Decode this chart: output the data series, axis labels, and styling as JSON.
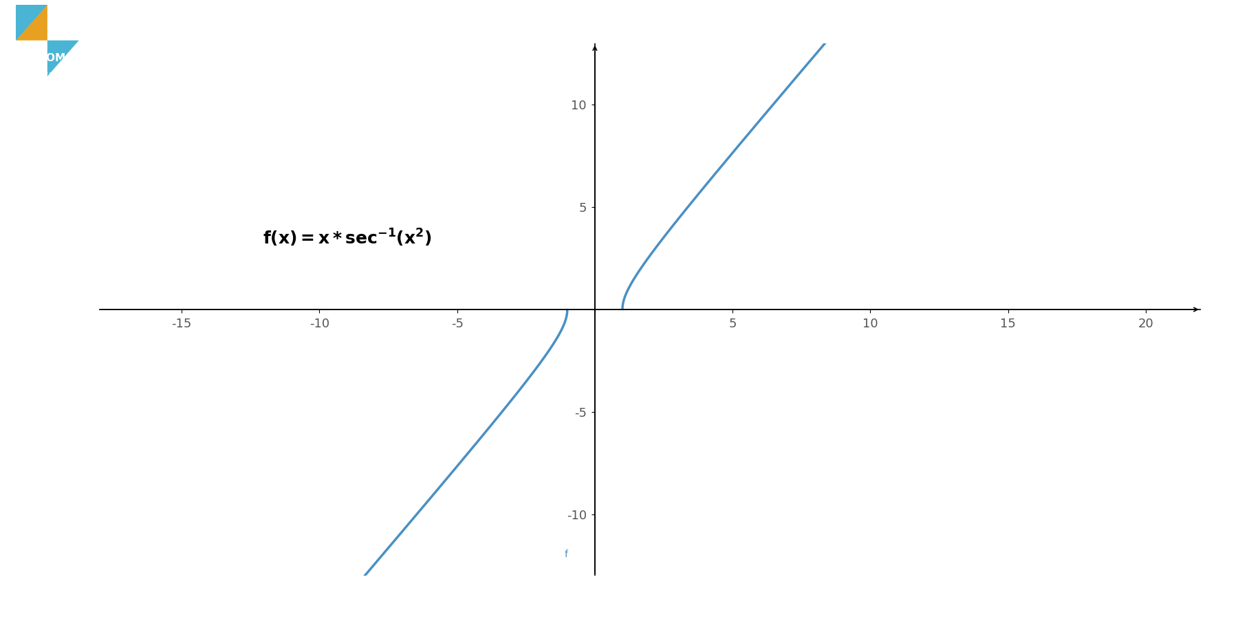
{
  "background_color": "#ffffff",
  "border_color_top": "#4ab4d4",
  "border_color_bottom": "#4ab4d4",
  "line_color": "#4a90c4",
  "line_width": 2.5,
  "xlim": [
    -18,
    22
  ],
  "ylim": [
    -13,
    13
  ],
  "xticks": [
    -15,
    -10,
    -5,
    0,
    5,
    10,
    15,
    20
  ],
  "yticks": [
    -10,
    -5,
    0,
    5,
    10
  ],
  "tick_fontsize": 13,
  "formula_x": -9,
  "formula_y": 3.5,
  "formula_fontsize": 18,
  "axis_color": "#000000",
  "tick_color": "#555555",
  "figsize": [
    18,
    9
  ],
  "dpi": 100
}
